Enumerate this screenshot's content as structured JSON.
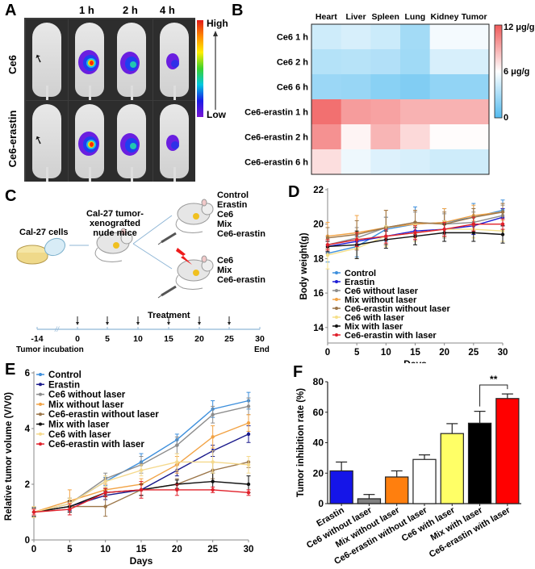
{
  "panel_labels": [
    "A",
    "B",
    "C",
    "D",
    "E",
    "F"
  ],
  "panelA": {
    "column_labels": [
      "1 h",
      "2 h",
      "4 h"
    ],
    "row_labels": [
      "Ce6",
      "Ce6-erastin"
    ],
    "colorbar": {
      "high_label": "High",
      "low_label": "Low"
    },
    "fluorescence_intensity": {
      "Ce6": [
        "none",
        "high",
        "medium",
        "low"
      ],
      "Ce6-erastin": [
        "none",
        "high",
        "medium",
        "low"
      ]
    }
  },
  "panelC": {
    "cells_label": "Cal-27 cells",
    "mice_label_line1": "Cal-27 tumor-xenografted",
    "mice_label_line2": "nude mice",
    "group_no_laser": [
      "Control",
      "Erastin",
      "Ce6",
      "Mix",
      "Ce6-erastin"
    ],
    "group_laser": [
      "Ce6",
      "Mix",
      "Ce6-erastin"
    ],
    "treatment_label": "Treatment",
    "timeline_ticks": [
      "-14",
      "0",
      "5",
      "10",
      "15",
      "20",
      "25",
      "30"
    ],
    "treatment_days": [
      "0",
      "5",
      "10",
      "15",
      "20",
      "25"
    ],
    "start_label": "Tumor incubation",
    "end_label": "End"
  },
  "chart_data": [
    {
      "id": "B",
      "type": "heatmap",
      "title": "",
      "x_categories": [
        "Heart",
        "Liver",
        "Spleen",
        "Lung",
        "Kidney",
        "Tumor"
      ],
      "y_categories": [
        "Ce6 1 h",
        "Ce6 2 h",
        "Ce6 6 h",
        "Ce6-erastin 1 h",
        "Ce6-erastin 2 h",
        "Ce6-erastin 6 h"
      ],
      "values": [
        [
          4.3,
          4.6,
          4.2,
          2.8,
          5.6,
          5.6
        ],
        [
          3.4,
          3.5,
          3.3,
          2.7,
          4.6,
          4.6
        ],
        [
          2.5,
          2.4,
          1.9,
          1.6,
          2.2,
          2.2
        ],
        [
          11.2,
          9.6,
          9.4,
          8.8,
          8.8,
          8.8
        ],
        [
          10.0,
          6.4,
          8.7,
          7.4,
          6.1,
          6.1
        ],
        [
          7.2,
          5.4,
          4.8,
          4.6,
          4.3,
          4.3
        ]
      ],
      "colorbar": {
        "min": 0,
        "mid": 6,
        "max": 12,
        "labels": [
          "12 μg/g",
          "6 μg/g",
          "0"
        ],
        "colors": [
          "#53bbef",
          "#ffffff",
          "#f05a5a"
        ]
      }
    },
    {
      "id": "D",
      "type": "line",
      "xlabel": "Days",
      "ylabel": "Body weight(g)",
      "x": [
        0,
        5,
        10,
        15,
        20,
        25,
        30
      ],
      "xticks": [
        "0",
        "5",
        "10",
        "15",
        "20",
        "25",
        "30"
      ],
      "yticks": [
        "14",
        "16",
        "18",
        "20",
        "22"
      ],
      "ylim": [
        13.1,
        22
      ],
      "xlim": [
        0,
        30
      ],
      "legend_position": "bottom-left",
      "series": [
        {
          "name": "Control",
          "color": "#3d8fdc",
          "values": [
            18.3,
            18.7,
            19.7,
            20.0,
            20.1,
            20.4,
            20.8
          ],
          "err": [
            0.5,
            0.6,
            0.7,
            1.0,
            0.8,
            0.8,
            0.6
          ]
        },
        {
          "name": "Erastin",
          "color": "#1d1dd6",
          "values": [
            18.7,
            19.0,
            19.3,
            19.6,
            19.7,
            19.9,
            20.4
          ],
          "err": [
            0.3,
            0.5,
            0.5,
            0.5,
            0.5,
            0.5,
            0.5
          ]
        },
        {
          "name": "Ce6 without laser",
          "color": "#8c8c8c",
          "values": [
            18.8,
            19.2,
            19.8,
            20.1,
            20.0,
            20.1,
            20.5
          ],
          "err": [
            0.5,
            0.6,
            0.6,
            0.6,
            0.6,
            0.6,
            0.6
          ]
        },
        {
          "name": "Mix without laser",
          "color": "#f2a345",
          "values": [
            19.3,
            19.5,
            19.8,
            20.0,
            20.1,
            20.5,
            20.7
          ],
          "err": [
            0.8,
            1.0,
            1.0,
            0.8,
            0.8,
            0.6,
            0.5
          ]
        },
        {
          "name": "Ce6-erastin without laser",
          "color": "#9b7548",
          "values": [
            19.2,
            19.4,
            19.8,
            20.1,
            20.0,
            20.4,
            20.7
          ],
          "err": [
            0.6,
            0.8,
            1.0,
            0.7,
            0.7,
            0.5,
            0.5
          ]
        },
        {
          "name": "Ce6 with laser",
          "color": "#f5e08a",
          "values": [
            18.2,
            18.6,
            19.3,
            19.5,
            19.7,
            19.7,
            19.6
          ],
          "err": [
            0.8,
            0.6,
            0.6,
            0.5,
            0.5,
            0.5,
            0.6
          ]
        },
        {
          "name": "Mix with laser",
          "color": "#111111",
          "values": [
            18.7,
            18.8,
            19.1,
            19.3,
            19.5,
            19.5,
            19.4
          ],
          "err": [
            0.3,
            0.8,
            0.5,
            0.5,
            0.5,
            0.5,
            0.5
          ]
        },
        {
          "name": "Ce6-erastin with laser",
          "color": "#e0202a",
          "values": [
            18.8,
            19.1,
            19.3,
            19.5,
            19.7,
            20.0,
            20.0
          ],
          "err": [
            0.3,
            0.4,
            0.4,
            0.4,
            0.4,
            0.4,
            0.3
          ]
        }
      ]
    },
    {
      "id": "E",
      "type": "line",
      "xlabel": "Days",
      "ylabel": "Relative tumor volume (V/V0)",
      "x": [
        0,
        5,
        10,
        15,
        20,
        25,
        30
      ],
      "xticks": [
        "0",
        "5",
        "10",
        "15",
        "20",
        "25",
        "30"
      ],
      "yticks": [
        "0",
        "2",
        "4",
        "6"
      ],
      "ylim": [
        0,
        6
      ],
      "xlim": [
        0,
        30
      ],
      "legend_position": "top-left",
      "series": [
        {
          "name": "Control",
          "color": "#3d8fdc",
          "values": [
            1.0,
            1.3,
            2.1,
            2.8,
            3.6,
            4.7,
            5.0
          ],
          "err": [
            0.15,
            0.2,
            0.15,
            0.3,
            0.2,
            0.3,
            0.3
          ]
        },
        {
          "name": "Erastin",
          "color": "#1a1a8c",
          "values": [
            1.0,
            1.2,
            1.6,
            1.8,
            2.5,
            3.2,
            3.8
          ],
          "err": [
            0.15,
            0.15,
            0.15,
            0.2,
            0.2,
            0.2,
            0.3
          ]
        },
        {
          "name": "Ce6 without laser",
          "color": "#8c8c8c",
          "values": [
            1.0,
            1.3,
            2.2,
            2.7,
            3.4,
            4.5,
            4.8
          ],
          "err": [
            0.15,
            0.2,
            0.2,
            0.3,
            0.3,
            0.3,
            0.3
          ]
        },
        {
          "name": "Mix without laser",
          "color": "#f2a345",
          "values": [
            1.0,
            1.4,
            1.8,
            2.0,
            2.7,
            3.7,
            4.2
          ],
          "err": [
            0.2,
            0.4,
            0.2,
            0.2,
            0.3,
            0.4,
            0.3
          ]
        },
        {
          "name": "Ce6-erastin without laser",
          "color": "#9b7548",
          "values": [
            1.0,
            1.2,
            1.2,
            1.8,
            2.0,
            2.5,
            2.8
          ],
          "err": [
            0.2,
            0.2,
            0.35,
            0.2,
            0.2,
            0.3,
            0.2
          ]
        },
        {
          "name": "Mix with laser",
          "color": "#111111",
          "values": [
            1.0,
            1.2,
            1.7,
            1.8,
            2.0,
            2.1,
            2.0
          ],
          "err": [
            0.15,
            0.2,
            0.15,
            0.2,
            0.15,
            0.3,
            0.3
          ]
        },
        {
          "name": "Ce6 with laser",
          "color": "#f5d98c",
          "values": [
            1.0,
            1.3,
            2.1,
            2.5,
            2.8,
            2.8,
            2.7
          ],
          "err": [
            0.2,
            0.2,
            0.2,
            0.2,
            0.3,
            0.4,
            0.3
          ]
        },
        {
          "name": "Ce6-erastin with laser",
          "color": "#e0202a",
          "values": [
            1.0,
            1.1,
            1.7,
            1.8,
            1.8,
            1.8,
            1.7
          ],
          "err": [
            0.1,
            0.2,
            0.15,
            0.3,
            0.2,
            0.1,
            0.1
          ]
        }
      ]
    },
    {
      "id": "F",
      "type": "bar",
      "xlabel": "",
      "ylabel": "Tumor inhibition rate (%)",
      "categories": [
        "Erastin",
        "Ce6 without laser",
        "Mix without laser",
        "Ce6-erastin without laser",
        "Ce6 with laser",
        "Mix with laser",
        "Ce6-erastin with laser"
      ],
      "values": [
        21.5,
        3.2,
        17.5,
        29.0,
        46.0,
        52.8,
        69.0
      ],
      "err": [
        5.8,
        2.8,
        4.0,
        3.0,
        6.5,
        7.8,
        3.0
      ],
      "colors": [
        "#1515e8",
        "#808080",
        "#ff7f0e",
        "#ffffff",
        "#ffff66",
        "#000000",
        "#ff0000"
      ],
      "yticks": [
        "0",
        "20",
        "40",
        "60",
        "80"
      ],
      "ylim": [
        0,
        80
      ],
      "significance": {
        "between": [
          "Mix with laser",
          "Ce6-erastin with laser"
        ],
        "label": "**"
      }
    }
  ]
}
